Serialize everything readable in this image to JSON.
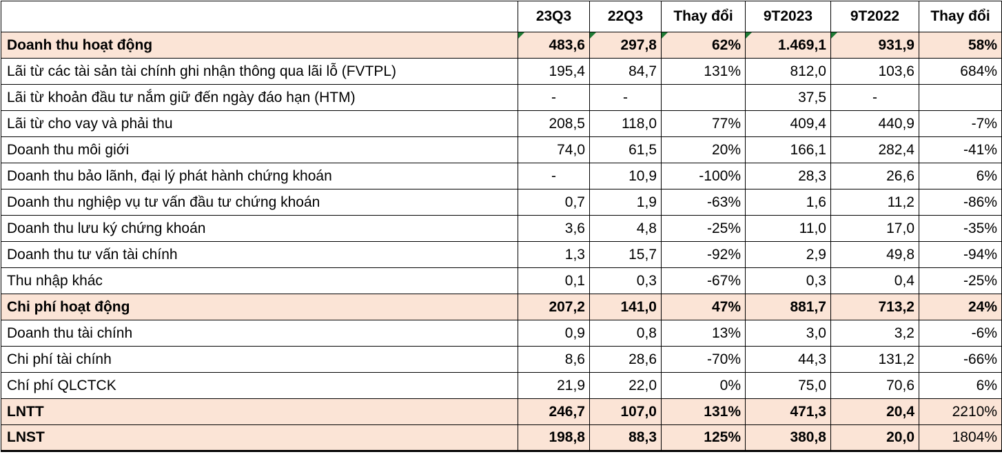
{
  "headers": [
    "",
    "23Q3",
    "22Q3",
    "Thay đổi",
    "9T2023",
    "9T2022",
    "Thay đổi"
  ],
  "rows": [
    {
      "label": "Doanh thu hoạt động",
      "bold": true,
      "cells": [
        "483,6",
        "297,8",
        "62%",
        "1.469,1",
        "931,9",
        "58%"
      ]
    },
    {
      "label": "Lãi từ các tài sản tài chính ghi nhận thông qua lãi lỗ (FVTPL)",
      "bold": false,
      "cells": [
        "195,4",
        "84,7",
        "131%",
        "812,0",
        "103,6",
        "684%"
      ]
    },
    {
      "label": "Lãi từ khoản đầu tư nắm giữ đến ngày đáo hạn (HTM)",
      "bold": false,
      "cells": [
        "-",
        "-",
        "",
        "37,5",
        "-",
        ""
      ]
    },
    {
      "label": "Lãi từ cho vay và phải thu",
      "bold": false,
      "cells": [
        "208,5",
        "118,0",
        "77%",
        "409,4",
        "440,9",
        "-7%"
      ]
    },
    {
      "label": "Doanh thu môi giới",
      "bold": false,
      "cells": [
        "74,0",
        "61,5",
        "20%",
        "166,1",
        "282,4",
        "-41%"
      ]
    },
    {
      "label": "Doanh thu bảo lãnh, đại lý phát hành chứng khoán",
      "bold": false,
      "cells": [
        "-",
        "10,9",
        "-100%",
        "28,3",
        "26,6",
        "6%"
      ]
    },
    {
      "label": "Doanh thu nghiệp vụ tư vấn đầu tư chứng khoán",
      "bold": false,
      "cells": [
        "0,7",
        "1,9",
        "-63%",
        "1,6",
        "11,2",
        "-86%"
      ]
    },
    {
      "label": "Doanh thu lưu ký chứng khoán",
      "bold": false,
      "cells": [
        "3,6",
        "4,8",
        "-25%",
        "11,0",
        "17,0",
        "-35%"
      ]
    },
    {
      "label": "Doanh thu tư vấn tài chính",
      "bold": false,
      "cells": [
        "1,3",
        "15,7",
        "-92%",
        "2,9",
        "49,8",
        "-94%"
      ]
    },
    {
      "label": "Thu nhập khác",
      "bold": false,
      "cells": [
        "0,1",
        "0,3",
        "-67%",
        "0,3",
        "0,4",
        "-25%"
      ]
    },
    {
      "label": "Chi phí hoạt động",
      "bold": true,
      "cells": [
        "207,2",
        "141,0",
        "47%",
        "881,7",
        "713,2",
        "24%"
      ]
    },
    {
      "label": "Doanh thu tài chính",
      "bold": false,
      "cells": [
        "0,9",
        "0,8",
        "13%",
        "3,0",
        "3,2",
        "-6%"
      ]
    },
    {
      "label": "Chi phí tài chính",
      "bold": false,
      "cells": [
        "8,6",
        "28,6",
        "-70%",
        "44,3",
        "131,2",
        "-66%"
      ]
    },
    {
      "label": "Chí phí QLCTCK",
      "bold": false,
      "cells": [
        "21,9",
        "22,0",
        "0%",
        "75,0",
        "70,6",
        "6%"
      ]
    },
    {
      "label": "LNTT",
      "bold": true,
      "cells": [
        "246,7",
        "107,0",
        "131%",
        "471,3",
        "20,4",
        "2210%"
      ],
      "plain_last": true
    },
    {
      "label": "LNST",
      "bold": true,
      "cells": [
        "198,8",
        "88,3",
        "125%",
        "380,8",
        "20,0",
        "1804%"
      ],
      "plain_last": true
    }
  ],
  "accent_colors": {
    "total_row_bg": "#fbe4d6",
    "cell_marker": "#1e7b34"
  }
}
